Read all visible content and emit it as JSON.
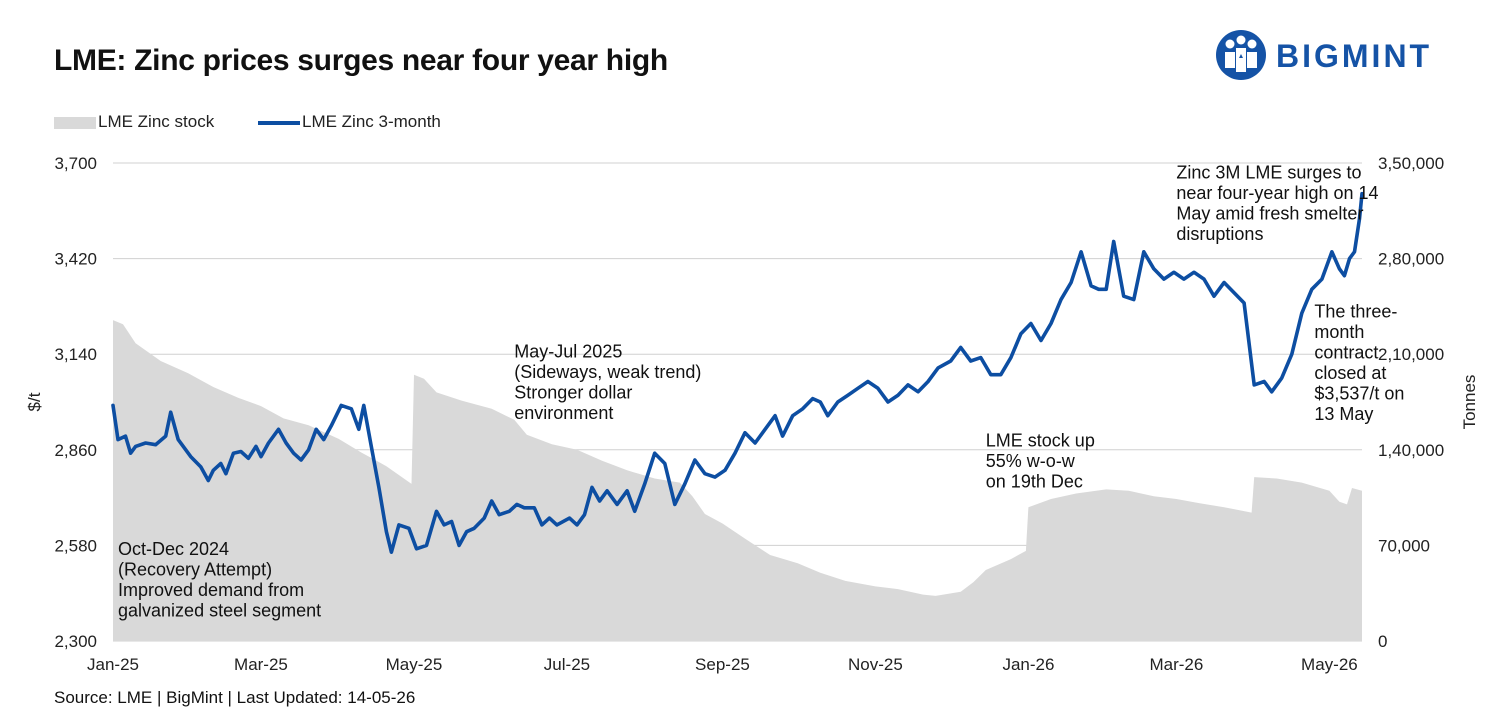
{
  "title": "LME: Zinc prices surges near four year high",
  "brand": {
    "name": "BIGMINT",
    "color": "#1553a6",
    "icon": "people-circle-logo-icon"
  },
  "source": "Source: LME | BigMint | Last Updated: 14-05-26",
  "chart_data": {
    "type": "line",
    "title": "LME: Zinc prices surges near four year high",
    "x_start": "2025-01-01",
    "x_end": "2026-05-14",
    "x_ticks": [
      {
        "label": "Jan-25",
        "date": "2025-01-01"
      },
      {
        "label": "Mar-25",
        "date": "2025-03-01"
      },
      {
        "label": "May-25",
        "date": "2025-05-01"
      },
      {
        "label": "Jul-25",
        "date": "2025-07-01"
      },
      {
        "label": "Sep-25",
        "date": "2025-09-01"
      },
      {
        "label": "Nov-25",
        "date": "2025-11-01"
      },
      {
        "label": "Jan-26",
        "date": "2026-01-01"
      },
      {
        "label": "Mar-26",
        "date": "2026-03-01"
      },
      {
        "label": "May-26",
        "date": "2026-05-01"
      }
    ],
    "y_left": {
      "label": "$/t",
      "min": 2300,
      "max": 3700,
      "ticks": [
        "2,300",
        "2,580",
        "2,860",
        "3,140",
        "3,420",
        "3,700"
      ],
      "tick_values": [
        2300,
        2580,
        2860,
        3140,
        3420,
        3700
      ]
    },
    "y_right": {
      "label": "Tonnes",
      "min": 0,
      "max": 350000,
      "ticks": [
        "0",
        "70,000",
        "1,40,000",
        "2,10,000",
        "2,80,000",
        "3,50,000"
      ],
      "tick_values": [
        0,
        70000,
        140000,
        210000,
        280000,
        350000
      ]
    },
    "grid": "horizontal",
    "legend": "top-left",
    "series": [
      {
        "name": "LME Zinc stock",
        "type": "area",
        "axis": "right",
        "color": "#d9d9d9",
        "points": [
          [
            "2025-01-01",
            235000
          ],
          [
            "2025-01-05",
            232000
          ],
          [
            "2025-01-10",
            218000
          ],
          [
            "2025-01-20",
            205000
          ],
          [
            "2025-01-31",
            196000
          ],
          [
            "2025-02-10",
            186000
          ],
          [
            "2025-02-20",
            178000
          ],
          [
            "2025-03-01",
            172000
          ],
          [
            "2025-03-10",
            163000
          ],
          [
            "2025-03-20",
            158000
          ],
          [
            "2025-04-01",
            148000
          ],
          [
            "2025-04-10",
            138000
          ],
          [
            "2025-04-20",
            128000
          ],
          [
            "2025-04-30",
            115000
          ],
          [
            "2025-05-01",
            195000
          ],
          [
            "2025-05-05",
            192000
          ],
          [
            "2025-05-10",
            182000
          ],
          [
            "2025-05-20",
            176000
          ],
          [
            "2025-06-01",
            170000
          ],
          [
            "2025-06-10",
            162000
          ],
          [
            "2025-06-15",
            151000
          ],
          [
            "2025-06-25",
            144000
          ],
          [
            "2025-07-05",
            140000
          ],
          [
            "2025-07-15",
            132000
          ],
          [
            "2025-07-25",
            125000
          ],
          [
            "2025-08-05",
            119000
          ],
          [
            "2025-08-15",
            116000
          ],
          [
            "2025-08-20",
            106000
          ],
          [
            "2025-08-25",
            93000
          ],
          [
            "2025-09-01",
            86000
          ],
          [
            "2025-09-10",
            75000
          ],
          [
            "2025-09-20",
            63000
          ],
          [
            "2025-10-01",
            57000
          ],
          [
            "2025-10-10",
            50000
          ],
          [
            "2025-10-20",
            44000
          ],
          [
            "2025-11-01",
            40000
          ],
          [
            "2025-11-10",
            38000
          ],
          [
            "2025-11-20",
            34000
          ],
          [
            "2025-11-25",
            33000
          ],
          [
            "2025-12-05",
            36000
          ],
          [
            "2025-12-10",
            43000
          ],
          [
            "2025-12-15",
            52000
          ],
          [
            "2025-12-25",
            60000
          ],
          [
            "2025-12-31",
            66000
          ],
          [
            "2026-01-01",
            98000
          ],
          [
            "2026-01-10",
            104000
          ],
          [
            "2026-01-20",
            108000
          ],
          [
            "2026-02-01",
            111000
          ],
          [
            "2026-02-10",
            110000
          ],
          [
            "2026-02-20",
            106000
          ],
          [
            "2026-03-01",
            104000
          ],
          [
            "2026-03-10",
            101000
          ],
          [
            "2026-03-20",
            98000
          ],
          [
            "2026-03-31",
            94000
          ],
          [
            "2026-04-01",
            120000
          ],
          [
            "2026-04-10",
            119000
          ],
          [
            "2026-04-20",
            116000
          ],
          [
            "2026-05-01",
            110000
          ],
          [
            "2026-05-05",
            102000
          ],
          [
            "2026-05-08",
            100000
          ],
          [
            "2026-05-10",
            112000
          ],
          [
            "2026-05-14",
            110000
          ]
        ]
      },
      {
        "name": "LME Zinc 3-month",
        "type": "line",
        "axis": "left",
        "color": "#0d4ea2",
        "points": [
          [
            "2025-01-01",
            2990
          ],
          [
            "2025-01-03",
            2890
          ],
          [
            "2025-01-06",
            2900
          ],
          [
            "2025-01-08",
            2850
          ],
          [
            "2025-01-10",
            2870
          ],
          [
            "2025-01-14",
            2880
          ],
          [
            "2025-01-18",
            2875
          ],
          [
            "2025-01-22",
            2900
          ],
          [
            "2025-01-24",
            2970
          ],
          [
            "2025-01-27",
            2890
          ],
          [
            "2025-02-01",
            2840
          ],
          [
            "2025-02-05",
            2810
          ],
          [
            "2025-02-08",
            2770
          ],
          [
            "2025-02-10",
            2800
          ],
          [
            "2025-02-13",
            2820
          ],
          [
            "2025-02-15",
            2790
          ],
          [
            "2025-02-18",
            2850
          ],
          [
            "2025-02-21",
            2855
          ],
          [
            "2025-02-24",
            2835
          ],
          [
            "2025-02-27",
            2870
          ],
          [
            "2025-03-01",
            2840
          ],
          [
            "2025-03-04",
            2880
          ],
          [
            "2025-03-08",
            2920
          ],
          [
            "2025-03-11",
            2880
          ],
          [
            "2025-03-14",
            2850
          ],
          [
            "2025-03-17",
            2830
          ],
          [
            "2025-03-20",
            2860
          ],
          [
            "2025-03-23",
            2920
          ],
          [
            "2025-03-26",
            2890
          ],
          [
            "2025-03-29",
            2930
          ],
          [
            "2025-04-02",
            2990
          ],
          [
            "2025-04-06",
            2980
          ],
          [
            "2025-04-09",
            2920
          ],
          [
            "2025-04-11",
            2990
          ],
          [
            "2025-04-14",
            2870
          ],
          [
            "2025-04-17",
            2750
          ],
          [
            "2025-04-20",
            2620
          ],
          [
            "2025-04-22",
            2560
          ],
          [
            "2025-04-25",
            2640
          ],
          [
            "2025-04-29",
            2630
          ],
          [
            "2025-05-02",
            2570
          ],
          [
            "2025-05-06",
            2580
          ],
          [
            "2025-05-10",
            2680
          ],
          [
            "2025-05-13",
            2640
          ],
          [
            "2025-05-16",
            2650
          ],
          [
            "2025-05-19",
            2580
          ],
          [
            "2025-05-22",
            2620
          ],
          [
            "2025-05-25",
            2630
          ],
          [
            "2025-05-29",
            2660
          ],
          [
            "2025-06-01",
            2710
          ],
          [
            "2025-06-04",
            2670
          ],
          [
            "2025-06-08",
            2680
          ],
          [
            "2025-06-11",
            2700
          ],
          [
            "2025-06-14",
            2690
          ],
          [
            "2025-06-18",
            2690
          ],
          [
            "2025-06-21",
            2640
          ],
          [
            "2025-06-24",
            2660
          ],
          [
            "2025-06-27",
            2640
          ],
          [
            "2025-07-02",
            2660
          ],
          [
            "2025-07-05",
            2640
          ],
          [
            "2025-07-08",
            2670
          ],
          [
            "2025-07-11",
            2750
          ],
          [
            "2025-07-14",
            2710
          ],
          [
            "2025-07-17",
            2740
          ],
          [
            "2025-07-21",
            2700
          ],
          [
            "2025-07-25",
            2740
          ],
          [
            "2025-07-28",
            2680
          ],
          [
            "2025-08-01",
            2760
          ],
          [
            "2025-08-05",
            2850
          ],
          [
            "2025-08-09",
            2820
          ],
          [
            "2025-08-13",
            2700
          ],
          [
            "2025-08-17",
            2760
          ],
          [
            "2025-08-21",
            2830
          ],
          [
            "2025-08-25",
            2790
          ],
          [
            "2025-08-29",
            2780
          ],
          [
            "2025-09-02",
            2800
          ],
          [
            "2025-09-06",
            2850
          ],
          [
            "2025-09-10",
            2910
          ],
          [
            "2025-09-14",
            2880
          ],
          [
            "2025-09-18",
            2920
          ],
          [
            "2025-09-22",
            2960
          ],
          [
            "2025-09-25",
            2900
          ],
          [
            "2025-09-29",
            2960
          ],
          [
            "2025-10-03",
            2980
          ],
          [
            "2025-10-07",
            3010
          ],
          [
            "2025-10-10",
            3000
          ],
          [
            "2025-10-13",
            2960
          ],
          [
            "2025-10-17",
            3000
          ],
          [
            "2025-10-21",
            3020
          ],
          [
            "2025-10-25",
            3040
          ],
          [
            "2025-10-29",
            3060
          ],
          [
            "2025-11-02",
            3040
          ],
          [
            "2025-11-06",
            3000
          ],
          [
            "2025-11-10",
            3020
          ],
          [
            "2025-11-14",
            3050
          ],
          [
            "2025-11-18",
            3030
          ],
          [
            "2025-11-22",
            3060
          ],
          [
            "2025-11-26",
            3100
          ],
          [
            "2025-12-01",
            3120
          ],
          [
            "2025-12-05",
            3160
          ],
          [
            "2025-12-09",
            3120
          ],
          [
            "2025-12-13",
            3130
          ],
          [
            "2025-12-17",
            3080
          ],
          [
            "2025-12-21",
            3080
          ],
          [
            "2025-12-25",
            3130
          ],
          [
            "2025-12-29",
            3200
          ],
          [
            "2026-01-02",
            3230
          ],
          [
            "2026-01-06",
            3180
          ],
          [
            "2026-01-10",
            3230
          ],
          [
            "2026-01-14",
            3300
          ],
          [
            "2026-01-18",
            3350
          ],
          [
            "2026-01-22",
            3440
          ],
          [
            "2026-01-26",
            3340
          ],
          [
            "2026-01-29",
            3330
          ],
          [
            "2026-02-01",
            3330
          ],
          [
            "2026-02-04",
            3470
          ],
          [
            "2026-02-08",
            3310
          ],
          [
            "2026-02-12",
            3300
          ],
          [
            "2026-02-16",
            3440
          ],
          [
            "2026-02-20",
            3390
          ],
          [
            "2026-02-24",
            3360
          ],
          [
            "2026-02-28",
            3380
          ],
          [
            "2026-03-04",
            3360
          ],
          [
            "2026-03-08",
            3380
          ],
          [
            "2026-03-12",
            3360
          ],
          [
            "2026-03-16",
            3310
          ],
          [
            "2026-03-20",
            3350
          ],
          [
            "2026-03-24",
            3320
          ],
          [
            "2026-03-28",
            3290
          ],
          [
            "2026-04-01",
            3050
          ],
          [
            "2026-04-05",
            3060
          ],
          [
            "2026-04-08",
            3030
          ],
          [
            "2026-04-12",
            3070
          ],
          [
            "2026-04-16",
            3140
          ],
          [
            "2026-04-20",
            3260
          ],
          [
            "2026-04-24",
            3330
          ],
          [
            "2026-04-28",
            3360
          ],
          [
            "2026-05-02",
            3440
          ],
          [
            "2026-05-05",
            3390
          ],
          [
            "2026-05-07",
            3370
          ],
          [
            "2026-05-09",
            3420
          ],
          [
            "2026-05-11",
            3440
          ],
          [
            "2026-05-13",
            3537
          ],
          [
            "2026-05-14",
            3610
          ]
        ]
      }
    ],
    "annotations": [
      {
        "lines": [
          "Oct-Dec 2024",
          "(Recovery Attempt)",
          "Improved demand from",
          "galvanized steel segment"
        ],
        "x": "2025-01-03",
        "y": 2552
      },
      {
        "lines": [
          "May-Jul 2025",
          "(Sideways, weak trend)",
          "Stronger dollar",
          "environment"
        ],
        "x": "2025-06-10",
        "y": 3130
      },
      {
        "lines": [
          "LME stock up",
          "55% w-o-w",
          "on 19th Dec"
        ],
        "x": "2025-12-15",
        "y": 2870
      },
      {
        "lines": [
          "Zinc 3M LME surges to",
          "near four-year high on 14",
          "May amid fresh smelter",
          "disruptions"
        ],
        "x": "2026-03-01",
        "y": 3655
      },
      {
        "lines": [
          "The three-",
          "month",
          "contract",
          "closed at",
          "$3,537/t on",
          "13 May"
        ],
        "x": "2026-04-25",
        "y": 3248
      }
    ]
  }
}
